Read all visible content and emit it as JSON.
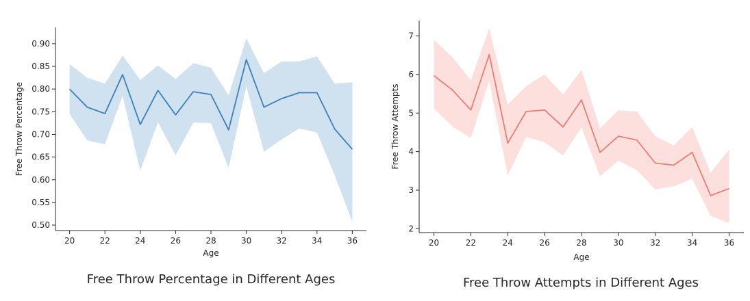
{
  "chart_data": [
    {
      "type": "line",
      "title": "Free Throw Percentage in Different Ages",
      "xlabel": "Age",
      "ylabel": "Free Throw Percentage",
      "xlim": [
        19.2,
        36.8
      ],
      "ylim": [
        0.488,
        0.936
      ],
      "xticks": [
        20,
        22,
        24,
        26,
        28,
        30,
        32,
        34,
        36
      ],
      "yticks": [
        0.5,
        0.55,
        0.6,
        0.65,
        0.7,
        0.75,
        0.8,
        0.85,
        0.9
      ],
      "ytick_labels": [
        "0.50",
        "0.55",
        "0.60",
        "0.65",
        "0.70",
        "0.75",
        "0.80",
        "0.85",
        "0.90"
      ],
      "grid": false,
      "line_color": "#3a7fbe",
      "band_color": "#a9c8e3",
      "x": [
        20,
        21,
        22,
        23,
        24,
        25,
        26,
        27,
        28,
        29,
        30,
        31,
        32,
        33,
        34,
        35,
        36
      ],
      "y": [
        0.8,
        0.76,
        0.746,
        0.832,
        0.722,
        0.797,
        0.743,
        0.794,
        0.788,
        0.71,
        0.865,
        0.76,
        0.779,
        0.792,
        0.792,
        0.712,
        0.667
      ],
      "upper": [
        0.855,
        0.825,
        0.812,
        0.874,
        0.82,
        0.852,
        0.822,
        0.857,
        0.847,
        0.786,
        0.912,
        0.835,
        0.861,
        0.861,
        0.872,
        0.812,
        0.815
      ],
      "lower": [
        0.745,
        0.687,
        0.678,
        0.785,
        0.62,
        0.727,
        0.654,
        0.726,
        0.725,
        0.626,
        0.806,
        0.662,
        0.689,
        0.713,
        0.704,
        0.61,
        0.507
      ]
    },
    {
      "type": "line",
      "title": "Free Throw Attempts in Different Ages",
      "xlabel": "Age",
      "ylabel": "Free Throw Attempts",
      "xlim": [
        19.2,
        36.8
      ],
      "ylim": [
        1.9,
        7.4
      ],
      "xticks": [
        20,
        22,
        24,
        26,
        28,
        30,
        32,
        34,
        36
      ],
      "yticks": [
        2,
        3,
        4,
        5,
        6,
        7
      ],
      "ytick_labels": [
        "2",
        "3",
        "4",
        "5",
        "6",
        "7"
      ],
      "grid": false,
      "line_color": "#f07b72",
      "band_color": "#fcc6c1",
      "x": [
        20,
        21,
        22,
        23,
        24,
        25,
        26,
        27,
        28,
        29,
        30,
        31,
        32,
        33,
        34,
        35,
        36
      ],
      "y": [
        5.97,
        5.6,
        5.08,
        6.52,
        4.22,
        5.04,
        5.08,
        4.64,
        5.34,
        3.98,
        4.4,
        4.3,
        3.7,
        3.65,
        3.98,
        2.86,
        3.04
      ],
      "upper": [
        6.9,
        6.45,
        5.85,
        7.2,
        5.22,
        5.7,
        6.0,
        5.48,
        6.12,
        4.61,
        5.07,
        5.04,
        4.4,
        4.16,
        4.64,
        3.45,
        4.06
      ],
      "lower": [
        5.12,
        4.65,
        4.35,
        5.83,
        3.38,
        4.38,
        4.24,
        3.9,
        4.63,
        3.36,
        3.77,
        3.52,
        3.02,
        3.1,
        3.3,
        2.33,
        2.15
      ]
    }
  ]
}
